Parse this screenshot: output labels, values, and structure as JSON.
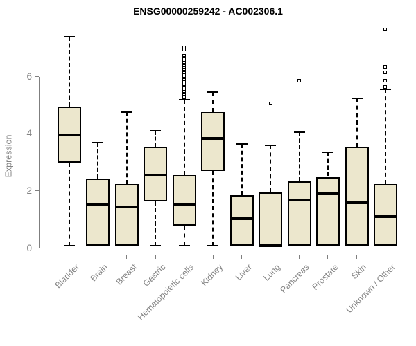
{
  "chart_data": {
    "type": "boxplot",
    "title": "ENSG00000259242 - AC002306.1",
    "ylabel": "Expression",
    "xlabel": "",
    "ylim": [
      0,
      7.8
    ],
    "yticks": [
      0,
      2,
      4,
      6
    ],
    "grid": false,
    "legend": null,
    "categories": [
      "Bladder",
      "Brain",
      "Breast",
      "Gastric",
      "Hematopoietic cells",
      "Kidney",
      "Liver",
      "Lung",
      "Pancreas",
      "Prostate",
      "Skin",
      "Unknown / Other"
    ],
    "boxes": [
      {
        "name": "Bladder",
        "whisker_low": 0.1,
        "q1": 3.0,
        "median": 3.95,
        "q3": 4.95,
        "whisker_high": 7.4,
        "outliers": []
      },
      {
        "name": "Brain",
        "whisker_low": null,
        "q1": 0.1,
        "median": 1.55,
        "q3": 2.45,
        "whisker_high": 3.7,
        "outliers": []
      },
      {
        "name": "Breast",
        "whisker_low": null,
        "q1": 0.1,
        "median": 1.45,
        "q3": 2.25,
        "whisker_high": 4.75,
        "outliers": []
      },
      {
        "name": "Gastric",
        "whisker_low": 0.1,
        "q1": 1.65,
        "median": 2.55,
        "q3": 3.55,
        "whisker_high": 4.1,
        "outliers": []
      },
      {
        "name": "Hematopoietic cells",
        "whisker_low": 0.1,
        "q1": 0.8,
        "median": 1.55,
        "q3": 2.55,
        "whisker_high": 5.2,
        "outliers": [
          7.02,
          6.94,
          6.72,
          6.66,
          6.6,
          6.54,
          6.48,
          6.42,
          6.36,
          6.3,
          6.24,
          6.18,
          6.12,
          6.06,
          6.0,
          5.94,
          5.88,
          5.82,
          5.76,
          5.7,
          5.64,
          5.58,
          5.52,
          5.46,
          5.4,
          5.34,
          5.28
        ]
      },
      {
        "name": "Kidney",
        "whisker_low": 0.1,
        "q1": 2.7,
        "median": 3.85,
        "q3": 4.75,
        "whisker_high": 5.45,
        "outliers": []
      },
      {
        "name": "Liver",
        "whisker_low": null,
        "q1": 0.1,
        "median": 1.05,
        "q3": 1.85,
        "whisker_high": 3.65,
        "outliers": []
      },
      {
        "name": "Lung",
        "whisker_low": null,
        "q1": 0.05,
        "median": 0.1,
        "q3": 1.95,
        "whisker_high": 3.6,
        "outliers": [
          5.05
        ]
      },
      {
        "name": "Pancreas",
        "whisker_low": null,
        "q1": 0.1,
        "median": 1.7,
        "q3": 2.35,
        "whisker_high": 4.05,
        "outliers": [
          5.85
        ]
      },
      {
        "name": "Prostate",
        "whisker_low": null,
        "q1": 0.1,
        "median": 1.9,
        "q3": 2.5,
        "whisker_high": 3.35,
        "outliers": []
      },
      {
        "name": "Skin",
        "whisker_low": null,
        "q1": 0.1,
        "median": 1.6,
        "q3": 3.55,
        "whisker_high": 5.25,
        "outliers": []
      },
      {
        "name": "Unknown / Other",
        "whisker_low": null,
        "q1": 0.1,
        "median": 1.1,
        "q3": 2.25,
        "whisker_high": 5.55,
        "outliers": [
          7.65,
          6.33,
          6.14,
          5.85,
          5.63
        ]
      }
    ],
    "style": {
      "box_fill": "#ece7cd",
      "box_border": "#000000",
      "median_color": "#000000",
      "whisker_color": "#000000",
      "axis_color": "#7f7f7f",
      "label_color": "#848484",
      "title_color": "#000000",
      "background": "#ffffff"
    }
  }
}
